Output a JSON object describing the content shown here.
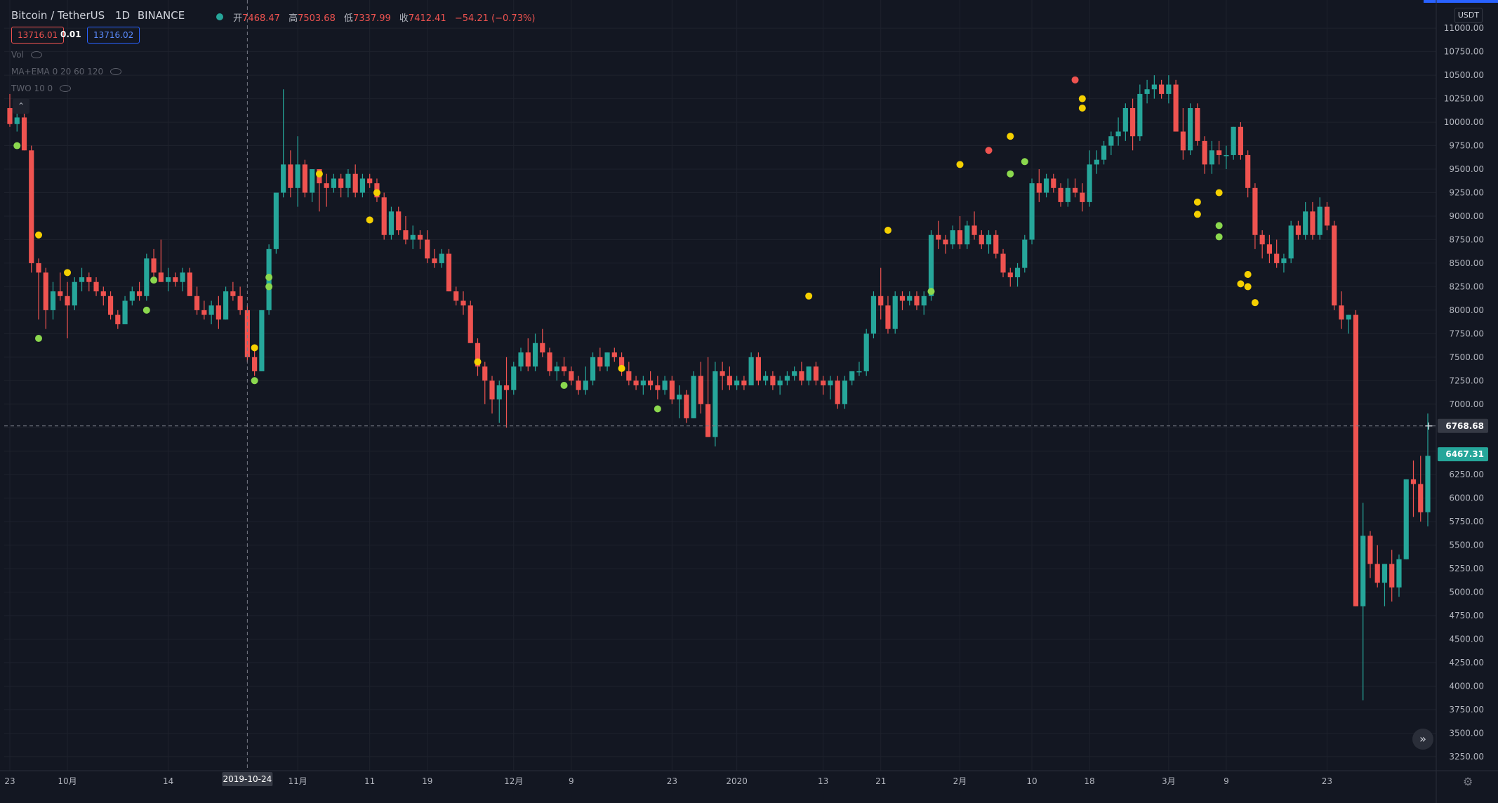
{
  "header": {
    "symbol": "Bitcoin / TetherUS",
    "interval": "1D",
    "exchange": "BINANCE",
    "open_label": "开",
    "open": "7468.47",
    "high_label": "高",
    "high": "7503.68",
    "low_label": "低",
    "low": "7337.99",
    "close_label": "收",
    "close": "7412.41",
    "change": "−54.21 (−0.73%)",
    "bid": "13716.01",
    "spread": "0.01",
    "ask": "13716.02",
    "status_color": "#26a69a"
  },
  "indicators": [
    {
      "label": "Vol",
      "icon": "eye-off-icon"
    },
    {
      "label": "MA+EMA 0 20 60 120",
      "icon": "eye-off-icon"
    },
    {
      "label": "TWO 10 0",
      "icon": "eye-off-icon"
    }
  ],
  "currency_label": "USDT",
  "colors": {
    "background": "#131722",
    "up": "#26a69a",
    "down": "#ef5350",
    "grid": "#1e222d",
    "axis_text": "#b2b5be",
    "dot_yellow": "#f5d000",
    "dot_green": "#8bd84e",
    "dot_red": "#ef5350",
    "crosshair_tag": "#363a45"
  },
  "chart_data": {
    "type": "candlestick",
    "symbol": "BTCUSDT",
    "interval": "1D",
    "ylim": [
      3100,
      11300
    ],
    "y_ticks": [
      3250,
      3500,
      3750,
      4000,
      4250,
      4500,
      4750,
      5000,
      5250,
      5500,
      5750,
      6000,
      6250,
      6500,
      6750,
      7000,
      7250,
      7500,
      7750,
      8000,
      8250,
      8500,
      8750,
      9000,
      9250,
      9500,
      9750,
      10000,
      10250,
      10500,
      10750,
      11000
    ],
    "x_tick_labels": [
      {
        "index": 0,
        "label": "23"
      },
      {
        "index": 8,
        "label": "10月"
      },
      {
        "index": 22,
        "label": "14"
      },
      {
        "index": 40,
        "label": "11月"
      },
      {
        "index": 50,
        "label": "11"
      },
      {
        "index": 58,
        "label": "19"
      },
      {
        "index": 70,
        "label": "12月"
      },
      {
        "index": 78,
        "label": "9"
      },
      {
        "index": 92,
        "label": "23"
      },
      {
        "index": 101,
        "label": "2020"
      },
      {
        "index": 113,
        "label": "13"
      },
      {
        "index": 121,
        "label": "21"
      },
      {
        "index": 132,
        "label": "2月"
      },
      {
        "index": 142,
        "label": "10"
      },
      {
        "index": 150,
        "label": "18"
      },
      {
        "index": 161,
        "label": "3月"
      },
      {
        "index": 169,
        "label": "9"
      },
      {
        "index": 183,
        "label": "23"
      }
    ],
    "crosshair": {
      "index": 33,
      "date": "2019-10-24",
      "price": "6768.68"
    },
    "last_price": "6467.31",
    "ohlc": [
      [
        10150,
        10300,
        9950,
        9980
      ],
      [
        9980,
        10150,
        9900,
        10050
      ],
      [
        10050,
        10100,
        9700,
        9700
      ],
      [
        9700,
        9750,
        8400,
        8500
      ],
      [
        8500,
        8550,
        7900,
        8400
      ],
      [
        8400,
        8450,
        7800,
        8000
      ],
      [
        8000,
        8300,
        7900,
        8200
      ],
      [
        8200,
        8400,
        8100,
        8150
      ],
      [
        8150,
        8300,
        7700,
        8050
      ],
      [
        8050,
        8350,
        8000,
        8300
      ],
      [
        8300,
        8450,
        8200,
        8350
      ],
      [
        8350,
        8400,
        8200,
        8300
      ],
      [
        8300,
        8350,
        8150,
        8200
      ],
      [
        8200,
        8250,
        8050,
        8150
      ],
      [
        8150,
        8200,
        7900,
        7950
      ],
      [
        7950,
        8000,
        7800,
        7850
      ],
      [
        7850,
        8150,
        7850,
        8100
      ],
      [
        8100,
        8250,
        8050,
        8200
      ],
      [
        8200,
        8300,
        8100,
        8150
      ],
      [
        8150,
        8600,
        8100,
        8550
      ],
      [
        8550,
        8650,
        8300,
        8400
      ],
      [
        8400,
        8750,
        8300,
        8300
      ],
      [
        8300,
        8450,
        8200,
        8350
      ],
      [
        8350,
        8400,
        8250,
        8300
      ],
      [
        8300,
        8450,
        8200,
        8400
      ],
      [
        8400,
        8450,
        8150,
        8150
      ],
      [
        8150,
        8250,
        7950,
        8000
      ],
      [
        8000,
        8100,
        7900,
        7950
      ],
      [
        7950,
        8100,
        7850,
        8050
      ],
      [
        8050,
        8150,
        7800,
        7900
      ],
      [
        7900,
        8250,
        7900,
        8200
      ],
      [
        8200,
        8300,
        8100,
        8150
      ],
      [
        8150,
        8250,
        7950,
        8000
      ],
      [
        8000,
        8050,
        7450,
        7500
      ],
      [
        7500,
        7600,
        7300,
        7350
      ],
      [
        7350,
        8000,
        7350,
        8000
      ],
      [
        8000,
        8700,
        7950,
        8650
      ],
      [
        8650,
        9250,
        8600,
        9250
      ],
      [
        9250,
        10350,
        9200,
        9550
      ],
      [
        9550,
        9700,
        9200,
        9300
      ],
      [
        9300,
        9850,
        9100,
        9550
      ],
      [
        9550,
        9600,
        9200,
        9250
      ],
      [
        9250,
        9500,
        9150,
        9500
      ],
      [
        9500,
        9500,
        9050,
        9350
      ],
      [
        9350,
        9450,
        9100,
        9300
      ],
      [
        9300,
        9450,
        9250,
        9400
      ],
      [
        9400,
        9450,
        9200,
        9300
      ],
      [
        9300,
        9500,
        9200,
        9450
      ],
      [
        9450,
        9550,
        9200,
        9250
      ],
      [
        9250,
        9450,
        9200,
        9400
      ],
      [
        9400,
        9450,
        9300,
        9350
      ],
      [
        9350,
        9400,
        9150,
        9200
      ],
      [
        9200,
        9250,
        8750,
        8800
      ],
      [
        8800,
        9100,
        8750,
        9050
      ],
      [
        9050,
        9100,
        8800,
        8850
      ],
      [
        8850,
        9000,
        8700,
        8750
      ],
      [
        8750,
        8900,
        8650,
        8800
      ],
      [
        8800,
        8850,
        8650,
        8750
      ],
      [
        8750,
        8850,
        8500,
        8550
      ],
      [
        8550,
        8650,
        8450,
        8500
      ],
      [
        8500,
        8650,
        8450,
        8600
      ],
      [
        8600,
        8650,
        8200,
        8200
      ],
      [
        8200,
        8250,
        8050,
        8100
      ],
      [
        8100,
        8200,
        7950,
        8050
      ],
      [
        8050,
        8100,
        7650,
        7650
      ],
      [
        7650,
        7700,
        7300,
        7400
      ],
      [
        7400,
        7450,
        7000,
        7250
      ],
      [
        7250,
        7300,
        6900,
        7050
      ],
      [
        7050,
        7250,
        6800,
        7200
      ],
      [
        7200,
        7500,
        6750,
        7150
      ],
      [
        7150,
        7450,
        7100,
        7400
      ],
      [
        7400,
        7600,
        7350,
        7550
      ],
      [
        7550,
        7700,
        7350,
        7400
      ],
      [
        7400,
        7750,
        7350,
        7650
      ],
      [
        7650,
        7800,
        7500,
        7550
      ],
      [
        7550,
        7600,
        7300,
        7350
      ],
      [
        7350,
        7450,
        7250,
        7400
      ],
      [
        7400,
        7500,
        7300,
        7350
      ],
      [
        7350,
        7400,
        7200,
        7250
      ],
      [
        7250,
        7300,
        7100,
        7150
      ],
      [
        7150,
        7400,
        7100,
        7250
      ],
      [
        7250,
        7550,
        7200,
        7500
      ],
      [
        7500,
        7600,
        7350,
        7400
      ],
      [
        7400,
        7550,
        7350,
        7550
      ],
      [
        7550,
        7600,
        7450,
        7500
      ],
      [
        7500,
        7550,
        7300,
        7350
      ],
      [
        7350,
        7450,
        7200,
        7250
      ],
      [
        7250,
        7300,
        7150,
        7200
      ],
      [
        7200,
        7300,
        7100,
        7250
      ],
      [
        7250,
        7350,
        7150,
        7200
      ],
      [
        7200,
        7300,
        7050,
        7150
      ],
      [
        7150,
        7300,
        7100,
        7250
      ],
      [
        7250,
        7300,
        7000,
        7050
      ],
      [
        7050,
        7200,
        6850,
        7100
      ],
      [
        7100,
        7150,
        6800,
        6850
      ],
      [
        6850,
        7350,
        6850,
        7300
      ],
      [
        7300,
        7450,
        6900,
        7000
      ],
      [
        7000,
        7500,
        6650,
        6650
      ],
      [
        6650,
        7450,
        6550,
        7350
      ],
      [
        7350,
        7450,
        7150,
        7300
      ],
      [
        7300,
        7400,
        7150,
        7200
      ],
      [
        7200,
        7300,
        7150,
        7250
      ],
      [
        7250,
        7300,
        7150,
        7200
      ],
      [
        7200,
        7550,
        7200,
        7500
      ],
      [
        7500,
        7550,
        7200,
        7250
      ],
      [
        7250,
        7350,
        7200,
        7300
      ],
      [
        7300,
        7350,
        7150,
        7200
      ],
      [
        7200,
        7300,
        7100,
        7250
      ],
      [
        7250,
        7350,
        7200,
        7300
      ],
      [
        7300,
        7400,
        7250,
        7350
      ],
      [
        7350,
        7450,
        7200,
        7250
      ],
      [
        7250,
        7400,
        7200,
        7400
      ],
      [
        7400,
        7450,
        7200,
        7250
      ],
      [
        7250,
        7300,
        7100,
        7200
      ],
      [
        7200,
        7300,
        7050,
        7250
      ],
      [
        7250,
        7300,
        6950,
        7000
      ],
      [
        7000,
        7300,
        6950,
        7250
      ],
      [
        7250,
        7350,
        7200,
        7350
      ],
      [
        7350,
        7450,
        7300,
        7350
      ],
      [
        7350,
        7800,
        7300,
        7750
      ],
      [
        7750,
        8200,
        7700,
        8150
      ],
      [
        8150,
        8450,
        7900,
        8050
      ],
      [
        8050,
        8150,
        7750,
        7800
      ],
      [
        7800,
        8200,
        7750,
        8150
      ],
      [
        8150,
        8200,
        8000,
        8100
      ],
      [
        8100,
        8200,
        8050,
        8150
      ],
      [
        8150,
        8200,
        8000,
        8050
      ],
      [
        8050,
        8200,
        7950,
        8150
      ],
      [
        8150,
        8850,
        8100,
        8800
      ],
      [
        8800,
        8950,
        8650,
        8750
      ],
      [
        8750,
        8800,
        8600,
        8700
      ],
      [
        8700,
        8900,
        8650,
        8850
      ],
      [
        8850,
        9000,
        8650,
        8700
      ],
      [
        8700,
        8950,
        8650,
        8900
      ],
      [
        8900,
        9050,
        8750,
        8800
      ],
      [
        8800,
        8850,
        8650,
        8700
      ],
      [
        8700,
        8850,
        8600,
        8800
      ],
      [
        8800,
        8850,
        8550,
        8600
      ],
      [
        8600,
        8650,
        8350,
        8400
      ],
      [
        8400,
        8450,
        8250,
        8350
      ],
      [
        8350,
        8500,
        8250,
        8450
      ],
      [
        8450,
        8800,
        8400,
        8750
      ],
      [
        8750,
        9400,
        8700,
        9350
      ],
      [
        9350,
        9500,
        9150,
        9250
      ],
      [
        9250,
        9450,
        9200,
        9400
      ],
      [
        9400,
        9450,
        9250,
        9300
      ],
      [
        9300,
        9350,
        9100,
        9150
      ],
      [
        9150,
        9400,
        9100,
        9300
      ],
      [
        9300,
        9400,
        9200,
        9250
      ],
      [
        9250,
        9350,
        9050,
        9150
      ],
      [
        9150,
        9700,
        9100,
        9550
      ],
      [
        9550,
        9700,
        9450,
        9600
      ],
      [
        9600,
        9800,
        9550,
        9750
      ],
      [
        9750,
        9900,
        9650,
        9850
      ],
      [
        9850,
        10050,
        9750,
        9900
      ],
      [
        9900,
        10200,
        9800,
        10150
      ],
      [
        10150,
        10250,
        9700,
        9850
      ],
      [
        9850,
        10400,
        9800,
        10300
      ],
      [
        10300,
        10450,
        10200,
        10350
      ],
      [
        10350,
        10500,
        10250,
        10400
      ],
      [
        10400,
        10450,
        10250,
        10300
      ],
      [
        10300,
        10500,
        10200,
        10400
      ],
      [
        10400,
        10450,
        9900,
        9900
      ],
      [
        9900,
        10150,
        9600,
        9700
      ],
      [
        9700,
        10200,
        9650,
        10150
      ],
      [
        10150,
        10200,
        9750,
        9800
      ],
      [
        9800,
        9850,
        9450,
        9550
      ],
      [
        9550,
        9800,
        9450,
        9700
      ],
      [
        9700,
        9800,
        9550,
        9650
      ],
      [
        9650,
        9750,
        9500,
        9650
      ],
      [
        9650,
        9950,
        9600,
        9950
      ],
      [
        9950,
        10000,
        9600,
        9650
      ],
      [
        9650,
        9700,
        9200,
        9300
      ],
      [
        9300,
        9350,
        8650,
        8800
      ],
      [
        8800,
        8850,
        8550,
        8700
      ],
      [
        8700,
        8800,
        8500,
        8600
      ],
      [
        8600,
        8750,
        8450,
        8500
      ],
      [
        8500,
        8600,
        8400,
        8550
      ],
      [
        8550,
        8950,
        8500,
        8900
      ],
      [
        8900,
        8950,
        8750,
        8800
      ],
      [
        8800,
        9150,
        8750,
        9050
      ],
      [
        9050,
        9150,
        8750,
        8800
      ],
      [
        8800,
        9200,
        8750,
        9100
      ],
      [
        9100,
        9150,
        8850,
        8900
      ],
      [
        8900,
        8950,
        8000,
        8050
      ],
      [
        8050,
        8200,
        7800,
        7900
      ],
      [
        7900,
        7950,
        7750,
        7950
      ],
      [
        7950,
        8000,
        4850,
        4850
      ],
      [
        4850,
        5950,
        3850,
        5600
      ],
      [
        5600,
        5650,
        5150,
        5300
      ],
      [
        5300,
        5500,
        5050,
        5100
      ],
      [
        5100,
        5300,
        4850,
        5300
      ],
      [
        5300,
        5450,
        4900,
        5050
      ],
      [
        5050,
        5400,
        4950,
        5350
      ],
      [
        5350,
        6200,
        5350,
        6200
      ],
      [
        6200,
        6400,
        5800,
        6150
      ],
      [
        6150,
        6450,
        5750,
        5850
      ],
      [
        5850,
        6900,
        5700,
        6450
      ]
    ],
    "signal_dots": [
      {
        "i": 1,
        "p": 10150,
        "c": "yellow"
      },
      {
        "i": 1,
        "p": 9750,
        "c": "green"
      },
      {
        "i": 4,
        "p": 8800,
        "c": "yellow"
      },
      {
        "i": 4,
        "p": 7700,
        "c": "green"
      },
      {
        "i": 8,
        "p": 8400,
        "c": "yellow"
      },
      {
        "i": 19,
        "p": 8000,
        "c": "green"
      },
      {
        "i": 20,
        "p": 8320,
        "c": "green"
      },
      {
        "i": 34,
        "p": 7600,
        "c": "yellow"
      },
      {
        "i": 34,
        "p": 7250,
        "c": "green"
      },
      {
        "i": 36,
        "p": 8350,
        "c": "green"
      },
      {
        "i": 36,
        "p": 8250,
        "c": "green"
      },
      {
        "i": 43,
        "p": 9450,
        "c": "yellow"
      },
      {
        "i": 51,
        "p": 9250,
        "c": "yellow"
      },
      {
        "i": 50,
        "p": 8960,
        "c": "yellow"
      },
      {
        "i": 65,
        "p": 7450,
        "c": "yellow"
      },
      {
        "i": 77,
        "p": 7200,
        "c": "green"
      },
      {
        "i": 85,
        "p": 7380,
        "c": "yellow"
      },
      {
        "i": 90,
        "p": 6950,
        "c": "green"
      },
      {
        "i": 111,
        "p": 8150,
        "c": "yellow"
      },
      {
        "i": 122,
        "p": 8850,
        "c": "yellow"
      },
      {
        "i": 128,
        "p": 8200,
        "c": "green"
      },
      {
        "i": 132,
        "p": 9550,
        "c": "yellow"
      },
      {
        "i": 136,
        "p": 9700,
        "c": "red"
      },
      {
        "i": 139,
        "p": 9850,
        "c": "yellow"
      },
      {
        "i": 139,
        "p": 9450,
        "c": "green"
      },
      {
        "i": 141,
        "p": 9580,
        "c": "green"
      },
      {
        "i": 148,
        "p": 10450,
        "c": "red"
      },
      {
        "i": 149,
        "p": 10250,
        "c": "yellow"
      },
      {
        "i": 149,
        "p": 10150,
        "c": "yellow"
      },
      {
        "i": 165,
        "p": 9150,
        "c": "yellow"
      },
      {
        "i": 165,
        "p": 9020,
        "c": "yellow"
      },
      {
        "i": 168,
        "p": 9250,
        "c": "yellow"
      },
      {
        "i": 168,
        "p": 8900,
        "c": "green"
      },
      {
        "i": 168,
        "p": 8780,
        "c": "green"
      },
      {
        "i": 171,
        "p": 8280,
        "c": "yellow"
      },
      {
        "i": 172,
        "p": 8380,
        "c": "yellow"
      },
      {
        "i": 172,
        "p": 8250,
        "c": "yellow"
      },
      {
        "i": 173,
        "p": 8080,
        "c": "yellow"
      }
    ]
  }
}
